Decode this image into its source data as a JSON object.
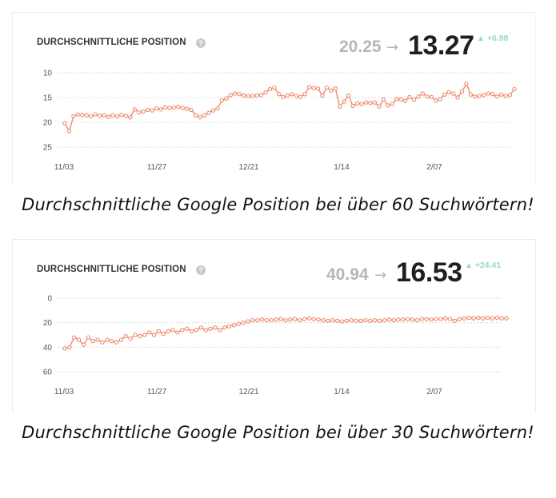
{
  "panels": [
    {
      "title": "DURCHSCHNITTLICHE POSITION",
      "info_icon": "?",
      "old_value": "20.25",
      "arrow": "→",
      "new_value": "13.27",
      "delta_triangle": "▲",
      "delta": "+6.98",
      "caption": "Durchschnittliche Google Position bei über 60 Suchwörtern!"
    },
    {
      "title": "DURCHSCHNITTLICHE POSITION",
      "info_icon": "?",
      "old_value": "40.94",
      "arrow": "→",
      "new_value": "16.53",
      "delta_triangle": "▲",
      "delta": "+24.41",
      "caption": "Durchschnittliche Google Position bei über 30 Suchwörtern!"
    }
  ],
  "colors": {
    "line": "#f08a6c",
    "grid": "#dcdcdc",
    "delta": "#8fdcc0",
    "old_value": "#b3b7bb"
  },
  "chart_data": [
    {
      "type": "line",
      "title": "DURCHSCHNITTLICHE POSITION",
      "xlabel": "",
      "ylabel": "",
      "y_inverted": true,
      "ylim": [
        8,
        26
      ],
      "y_ticks": [
        10,
        15,
        20,
        25
      ],
      "x_ticks": [
        "11/03",
        "11/27",
        "12/21",
        "1/14",
        "2/07"
      ],
      "x_range_days": [
        0,
        107
      ],
      "grid": true,
      "series": [
        {
          "values": [
            20.2,
            21.8,
            18.8,
            18.4,
            18.5,
            18.6,
            18.8,
            18.4,
            18.7,
            18.6,
            18.9,
            18.6,
            18.8,
            18.5,
            18.7,
            19.0,
            17.4,
            18.0,
            17.8,
            17.5,
            17.6,
            17.2,
            17.4,
            17.0,
            17.1,
            17.0,
            16.9,
            17.1,
            17.3,
            17.5,
            18.6,
            19.0,
            18.6,
            18.1,
            17.6,
            17.2,
            15.6,
            15.2,
            14.5,
            14.2,
            14.3,
            14.6,
            14.7,
            14.7,
            14.6,
            14.5,
            14.0,
            13.3,
            13.0,
            14.3,
            14.9,
            14.6,
            14.3,
            14.7,
            14.9,
            14.3,
            12.9,
            13.1,
            13.2,
            14.6,
            13.0,
            13.6,
            13.2,
            16.8,
            15.8,
            14.6,
            16.7,
            16.2,
            16.3,
            16.0,
            16.1,
            16.0,
            16.8,
            15.4,
            16.6,
            16.3,
            15.3,
            15.4,
            15.7,
            14.9,
            15.4,
            14.8,
            14.2,
            14.8,
            14.9,
            15.6,
            15.3,
            14.4,
            13.9,
            14.2,
            15.0,
            13.8,
            12.2,
            14.4,
            14.8,
            14.7,
            14.5,
            14.2,
            14.3,
            14.8,
            14.4,
            14.7,
            14.5,
            13.3
          ]
        }
      ]
    },
    {
      "type": "line",
      "title": "DURCHSCHNITTLICHE POSITION",
      "xlabel": "",
      "ylabel": "",
      "y_inverted": true,
      "ylim": [
        -4,
        63
      ],
      "y_ticks": [
        0,
        20,
        40,
        60
      ],
      "x_ticks": [
        "11/03",
        "11/27",
        "12/21",
        "1/14",
        "2/07"
      ],
      "x_range_days": [
        0,
        107
      ],
      "grid": true,
      "series": [
        {
          "values": [
            41.0,
            40.0,
            32.0,
            34.0,
            38.0,
            32.0,
            35.0,
            34.0,
            36.0,
            34.0,
            35.0,
            36.0,
            34.0,
            31.0,
            33.0,
            30.0,
            31.0,
            30.0,
            28.0,
            30.0,
            27.0,
            29.0,
            27.0,
            26.0,
            28.0,
            26.0,
            25.0,
            27.0,
            26.0,
            24.0,
            26.0,
            25.0,
            24.0,
            26.0,
            24.0,
            23.0,
            22.0,
            21.0,
            20.0,
            19.0,
            18.0,
            18.0,
            17.5,
            18.0,
            18.0,
            17.5,
            17.0,
            18.0,
            17.5,
            17.0,
            18.0,
            17.0,
            16.5,
            17.0,
            17.5,
            18.0,
            18.5,
            18.0,
            18.5,
            19.0,
            18.5,
            18.0,
            18.5,
            18.5,
            18.0,
            18.5,
            18.0,
            18.5,
            18.0,
            17.5,
            18.0,
            17.5,
            17.5,
            17.0,
            17.5,
            18.0,
            17.0,
            17.0,
            17.5,
            17.0,
            17.0,
            16.5,
            17.0,
            18.5,
            17.0,
            16.5,
            16.0,
            16.5,
            16.0,
            16.5,
            16.0,
            16.5,
            16.0,
            16.5,
            16.5
          ]
        }
      ]
    }
  ]
}
